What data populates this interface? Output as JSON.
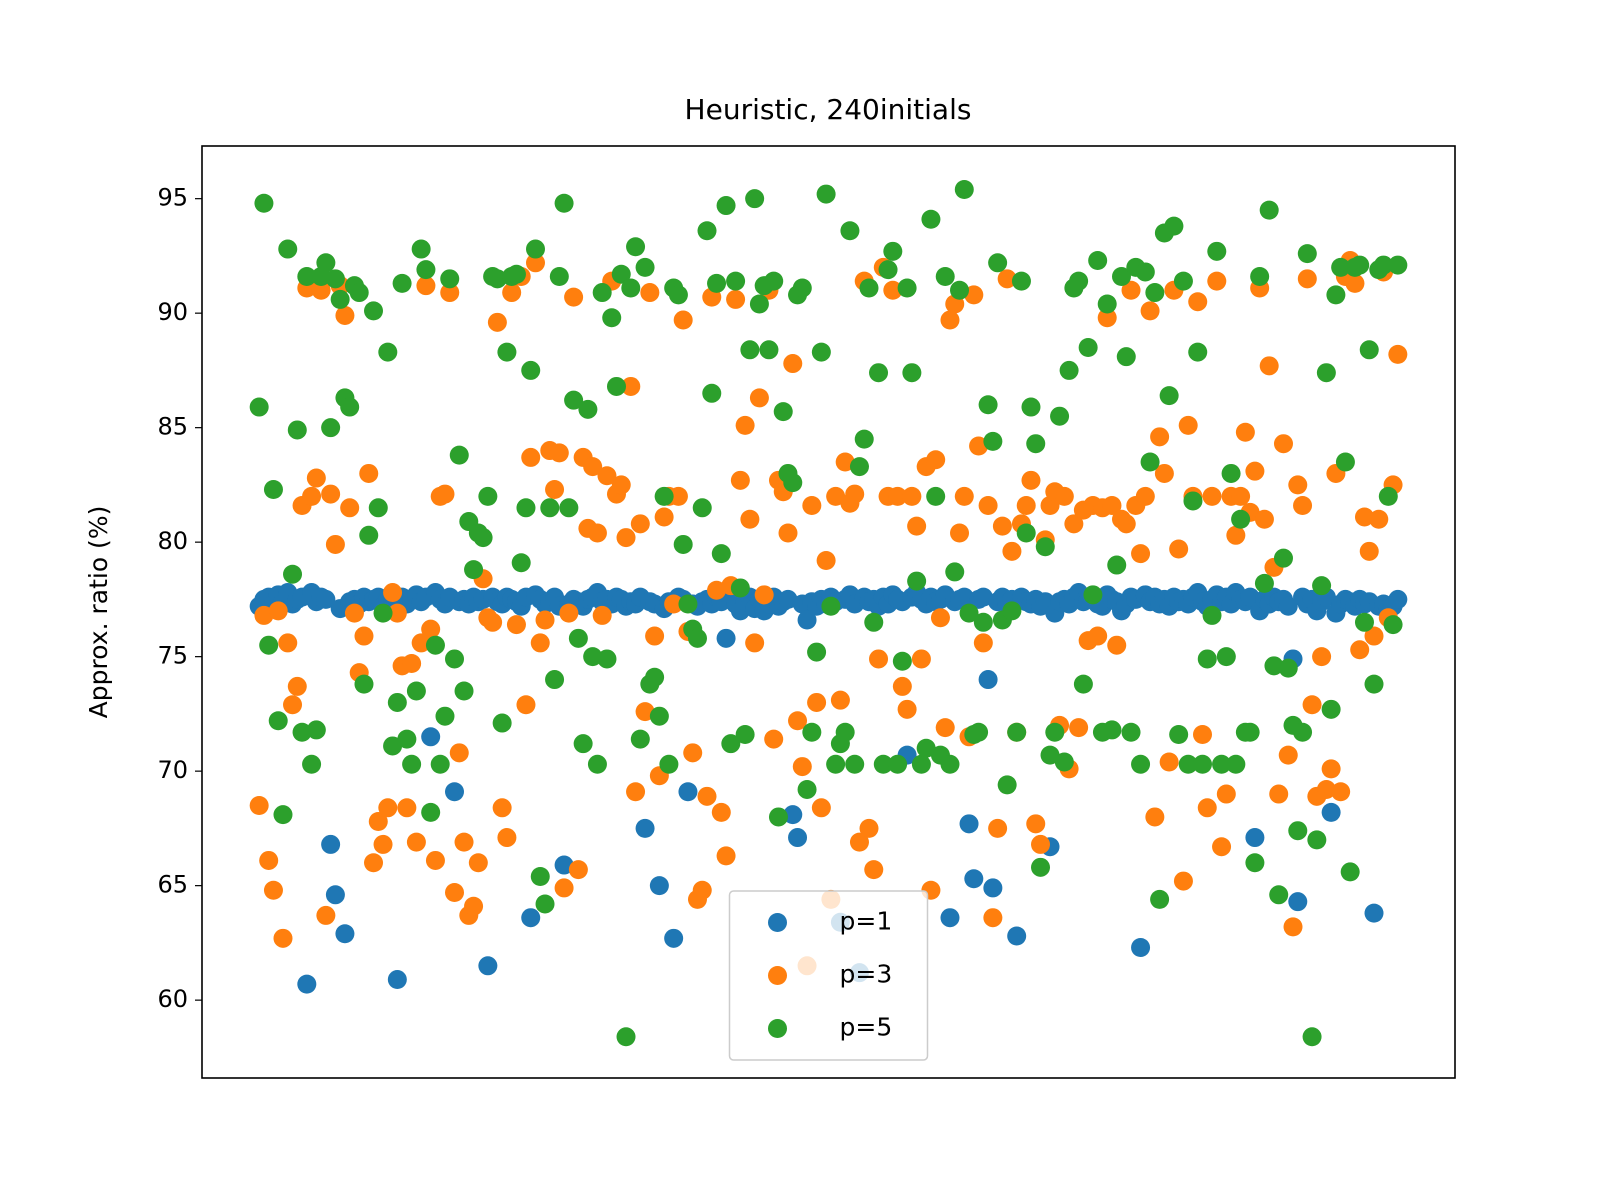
{
  "chart_data": {
    "type": "scatter",
    "title": "Heuristic, 240initials",
    "ylabel": "Approx. ratio (%)",
    "x": [
      0,
      1,
      2,
      3,
      4,
      5,
      6,
      7,
      8,
      9,
      10,
      11,
      12,
      13,
      14,
      15,
      16,
      17,
      18,
      19,
      20,
      21,
      22,
      23,
      24,
      25,
      26,
      27,
      28,
      29,
      30,
      31,
      32,
      33,
      34,
      35,
      36,
      37,
      38,
      39,
      40,
      41,
      42,
      43,
      44,
      45,
      46,
      47,
      48,
      49,
      50,
      51,
      52,
      53,
      54,
      55,
      56,
      57,
      58,
      59,
      60,
      61,
      62,
      63,
      64,
      65,
      66,
      67,
      68,
      69,
      70,
      71,
      72,
      73,
      74,
      75,
      76,
      77,
      78,
      79,
      80,
      81,
      82,
      83,
      84,
      85,
      86,
      87,
      88,
      89,
      90,
      91,
      92,
      93,
      94,
      95,
      96,
      97,
      98,
      99,
      100,
      101,
      102,
      103,
      104,
      105,
      106,
      107,
      108,
      109,
      110,
      111,
      112,
      113,
      114,
      115,
      116,
      117,
      118,
      119,
      120,
      121,
      122,
      123,
      124,
      125,
      126,
      127,
      128,
      129,
      130,
      131,
      132,
      133,
      134,
      135,
      136,
      137,
      138,
      139,
      140,
      141,
      142,
      143,
      144,
      145,
      146,
      147,
      148,
      149,
      150,
      151,
      152,
      153,
      154,
      155,
      156,
      157,
      158,
      159,
      160,
      161,
      162,
      163,
      164,
      165,
      166,
      167,
      168,
      169,
      170,
      171,
      172,
      173,
      174,
      175,
      176,
      177,
      178,
      179,
      180,
      181,
      182,
      183,
      184,
      185,
      186,
      187,
      188,
      189,
      190,
      191,
      192,
      193,
      194,
      195,
      196,
      197,
      198,
      199,
      200,
      201,
      202,
      203,
      204,
      205,
      206,
      207,
      208,
      209,
      210,
      211,
      212,
      213,
      214,
      215,
      216,
      217,
      218,
      219,
      220,
      221,
      222,
      223,
      224,
      225,
      226,
      227,
      228,
      229,
      230,
      231,
      232,
      233,
      234,
      235,
      236,
      237,
      238,
      239
    ],
    "series": [
      {
        "name": "p=1",
        "color": "#1f77b4",
        "values": [
          77.2,
          77.5,
          77.6,
          77.3,
          77.7,
          77.4,
          77.8,
          77.3,
          77.5,
          77.6,
          60.7,
          77.8,
          77.4,
          77.6,
          77.5,
          66.8,
          64.6,
          77.1,
          62.9,
          77.4,
          77.5,
          77.3,
          77.6,
          77.4,
          77.5,
          77.6,
          77.2,
          77.5,
          77.4,
          60.9,
          77.6,
          77.3,
          77.5,
          77.7,
          77.4,
          77.6,
          71.5,
          77.8,
          77.5,
          77.3,
          77.6,
          69.1,
          77.4,
          77.5,
          77.3,
          77.6,
          77.4,
          77.5,
          61.5,
          77.6,
          77.4,
          77.3,
          77.6,
          77.5,
          77.4,
          77.2,
          77.6,
          63.6,
          77.7,
          77.5,
          77.3,
          77.4,
          77.6,
          77.2,
          65.9,
          77.3,
          77.5,
          77.4,
          77.2,
          77.5,
          77.6,
          77.8,
          77.4,
          77.5,
          77.3,
          77.6,
          77.5,
          77.2,
          77.4,
          77.3,
          77.6,
          67.5,
          77.4,
          77.3,
          65.0,
          77.1,
          77.4,
          62.7,
          77.6,
          77.5,
          69.1,
          77.3,
          77.2,
          77.4,
          77.5,
          77.3,
          77.6,
          77.4,
          75.8,
          77.5,
          77.3,
          77.0,
          77.4,
          77.6,
          77.1,
          77.5,
          77.0,
          77.3,
          77.6,
          77.2,
          77.4,
          77.5,
          68.1,
          67.1,
          77.3,
          76.6,
          77.4,
          77.2,
          77.5,
          77.3,
          77.6,
          77.4,
          63.4,
          77.5,
          77.7,
          77.3,
          61.2,
          77.6,
          77.4,
          77.5,
          77.2,
          77.6,
          77.3,
          77.7,
          77.5,
          77.4,
          70.7,
          77.6,
          77.8,
          77.5,
          77.3,
          77.6,
          77.4,
          77.5,
          77.7,
          63.6,
          77.4,
          77.5,
          77.6,
          67.7,
          65.3,
          77.5,
          77.6,
          74.0,
          64.9,
          77.4,
          77.6,
          77.3,
          77.5,
          62.8,
          77.6,
          77.4,
          77.3,
          77.5,
          77.2,
          77.4,
          66.7,
          76.9,
          77.4,
          77.5,
          77.3,
          77.6,
          77.8,
          77.4,
          77.5,
          77.6,
          77.3,
          77.2,
          77.7,
          77.5,
          77.4,
          77.0,
          77.3,
          77.6,
          77.5,
          62.3,
          77.7,
          77.4,
          77.6,
          77.3,
          77.5,
          77.2,
          77.6,
          77.4,
          77.5,
          77.3,
          77.6,
          77.8,
          77.4,
          77.2,
          77.5,
          77.7,
          77.4,
          77.6,
          77.3,
          77.8,
          77.5,
          77.4,
          77.6,
          67.1,
          77.0,
          77.5,
          77.3,
          77.6,
          77.4,
          77.5,
          77.2,
          74.9,
          64.3,
          77.6,
          77.3,
          77.5,
          77.0,
          77.4,
          77.6,
          68.2,
          76.9,
          77.3,
          77.5,
          77.4,
          77.2,
          77.5,
          77.3,
          77.4,
          63.8,
          77.2,
          77.3,
          77.1,
          77.2,
          77.5
        ]
      },
      {
        "name": "p=3",
        "color": "#ff7f0e",
        "values": [
          68.5,
          76.8,
          66.1,
          64.8,
          77.0,
          62.7,
          75.6,
          72.9,
          73.7,
          81.6,
          91.1,
          82.0,
          82.8,
          91.0,
          63.7,
          82.1,
          79.9,
          91.2,
          89.9,
          81.5,
          76.9,
          74.3,
          75.9,
          83.0,
          66.0,
          67.8,
          66.8,
          68.4,
          77.8,
          76.9,
          74.6,
          68.4,
          74.7,
          66.9,
          75.6,
          91.2,
          76.2,
          66.1,
          82.0,
          82.1,
          90.9,
          64.7,
          70.8,
          66.9,
          63.7,
          64.1,
          66.0,
          78.4,
          76.7,
          76.5,
          89.6,
          68.4,
          67.1,
          90.9,
          76.4,
          91.6,
          72.9,
          83.7,
          92.2,
          75.6,
          76.6,
          84.0,
          82.3,
          83.9,
          64.9,
          76.9,
          90.7,
          65.7,
          83.7,
          80.6,
          83.3,
          80.4,
          76.8,
          82.9,
          91.4,
          82.1,
          82.5,
          80.2,
          86.8,
          69.1,
          80.8,
          72.6,
          90.9,
          75.9,
          69.8,
          81.1,
          82.0,
          77.3,
          82.0,
          89.7,
          76.1,
          70.8,
          64.4,
          64.8,
          68.9,
          90.7,
          77.9,
          68.2,
          66.3,
          78.1,
          90.6,
          82.7,
          85.1,
          81.0,
          75.6,
          86.3,
          77.7,
          91.0,
          71.4,
          82.7,
          82.2,
          80.4,
          87.8,
          72.2,
          70.2,
          61.5,
          81.6,
          73.0,
          68.4,
          79.2,
          64.4,
          82.0,
          73.1,
          83.5,
          81.7,
          82.1,
          66.9,
          91.4,
          67.5,
          65.7,
          74.9,
          92.0,
          82.0,
          91.0,
          82.0,
          73.7,
          72.7,
          82.0,
          80.7,
          74.9,
          83.3,
          64.8,
          83.6,
          76.7,
          71.9,
          89.7,
          90.4,
          80.4,
          82.0,
          71.5,
          90.8,
          84.2,
          75.6,
          81.6,
          63.6,
          67.5,
          80.7,
          91.5,
          79.6,
          71.7,
          80.8,
          81.6,
          82.7,
          67.7,
          66.8,
          80.1,
          81.6,
          82.2,
          72.0,
          82.0,
          70.1,
          80.8,
          71.9,
          81.4,
          75.7,
          81.6,
          75.9,
          81.5,
          89.8,
          81.6,
          75.5,
          81.0,
          80.8,
          91.0,
          81.6,
          79.5,
          82.0,
          90.1,
          68.0,
          84.6,
          83.0,
          70.4,
          91.0,
          79.7,
          65.2,
          85.1,
          82.0,
          90.5,
          71.6,
          68.4,
          82.0,
          91.4,
          66.7,
          69.0,
          82.0,
          80.3,
          82.0,
          84.8,
          81.3,
          83.1,
          91.1,
          81.0,
          87.7,
          78.9,
          69.0,
          84.3,
          70.7,
          63.2,
          82.5,
          81.6,
          91.5,
          72.9,
          68.9,
          75.0,
          69.2,
          70.1,
          83.0,
          69.1,
          91.6,
          92.3,
          91.3,
          75.3,
          81.1,
          79.6,
          75.9,
          81.0,
          91.8,
          76.7,
          82.5,
          88.2
        ]
      },
      {
        "name": "p=5",
        "color": "#2ca02c",
        "values": [
          85.9,
          94.8,
          75.5,
          82.3,
          72.2,
          68.1,
          92.8,
          78.6,
          84.9,
          71.7,
          91.6,
          70.3,
          71.8,
          91.6,
          92.2,
          85.0,
          91.5,
          90.6,
          86.3,
          85.9,
          91.2,
          90.9,
          73.8,
          80.3,
          90.1,
          81.5,
          76.9,
          88.3,
          71.1,
          73.0,
          91.3,
          71.4,
          70.3,
          73.5,
          92.8,
          91.9,
          68.2,
          75.5,
          70.3,
          72.4,
          91.5,
          74.9,
          83.8,
          73.5,
          80.9,
          78.8,
          80.4,
          80.2,
          82.0,
          91.6,
          91.5,
          72.1,
          88.3,
          91.6,
          91.7,
          79.1,
          81.5,
          87.5,
          92.8,
          65.4,
          64.2,
          81.5,
          74.0,
          91.6,
          94.8,
          81.5,
          86.2,
          75.8,
          71.2,
          85.8,
          75.0,
          70.3,
          90.9,
          74.9,
          89.8,
          86.8,
          91.7,
          58.4,
          91.1,
          92.9,
          71.4,
          92.0,
          73.8,
          74.1,
          72.4,
          82.0,
          70.3,
          91.1,
          90.8,
          79.9,
          77.3,
          76.2,
          75.8,
          81.5,
          93.6,
          86.5,
          91.3,
          79.5,
          94.7,
          71.2,
          91.4,
          78.0,
          71.6,
          88.4,
          95.0,
          90.4,
          91.2,
          88.4,
          91.4,
          68.0,
          85.7,
          83.0,
          82.6,
          90.8,
          91.1,
          69.2,
          71.7,
          75.2,
          88.3,
          95.2,
          77.2,
          70.3,
          71.2,
          71.7,
          93.6,
          70.3,
          83.3,
          84.5,
          91.1,
          76.5,
          87.4,
          70.3,
          91.9,
          92.7,
          70.3,
          74.8,
          91.1,
          87.4,
          78.3,
          70.3,
          71.0,
          94.1,
          82.0,
          70.7,
          91.6,
          70.3,
          78.7,
          91.0,
          95.4,
          76.9,
          71.6,
          71.7,
          76.5,
          86.0,
          84.4,
          92.2,
          76.6,
          69.4,
          77.0,
          71.7,
          91.4,
          80.4,
          85.9,
          84.3,
          65.8,
          79.8,
          70.7,
          71.7,
          85.5,
          70.4,
          87.5,
          91.1,
          91.4,
          73.8,
          88.5,
          77.7,
          92.3,
          71.7,
          90.4,
          71.8,
          79.0,
          91.6,
          88.1,
          71.7,
          92.0,
          70.3,
          91.8,
          83.5,
          90.9,
          64.4,
          93.5,
          86.4,
          93.8,
          71.6,
          91.4,
          70.3,
          81.8,
          88.3,
          70.3,
          74.9,
          76.8,
          92.7,
          70.3,
          75.0,
          83.0,
          70.3,
          81.0,
          71.7,
          71.7,
          66.0,
          91.6,
          78.2,
          94.5,
          74.6,
          64.6,
          79.3,
          74.5,
          72.0,
          67.4,
          71.7,
          92.6,
          58.4,
          67.0,
          78.1,
          87.4,
          72.7,
          90.8,
          92.0,
          83.5,
          65.6,
          92.0,
          92.1,
          76.5,
          88.4,
          73.8,
          91.9,
          92.1,
          82.0,
          76.4,
          92.1
        ]
      }
    ],
    "xlim": [
      -12,
      251
    ],
    "ylim": [
      56.6,
      97.3
    ],
    "yticks": [
      60,
      65,
      70,
      75,
      80,
      85,
      90,
      95
    ],
    "legend": "lower center",
    "grid": false
  }
}
